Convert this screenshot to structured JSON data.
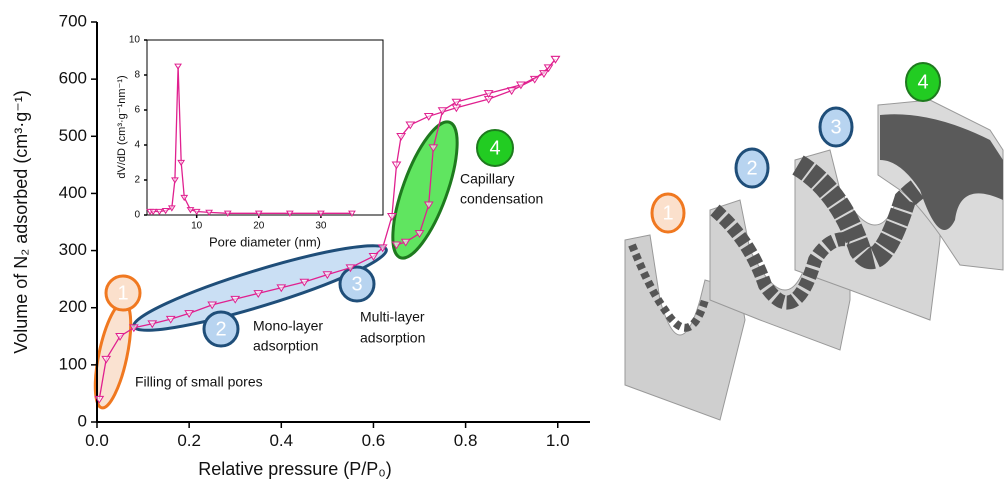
{
  "chart_data": {
    "type": "line",
    "x_label": "Relative pressure (P/P₀)",
    "y_label": "Volume of N₂ adsorbed (cm³·g⁻¹)",
    "xlim": [
      0,
      1.07
    ],
    "ylim": [
      0,
      700
    ],
    "xticks": [
      {
        "value": 0,
        "label": "0.0"
      },
      0.2,
      0.4,
      0.6,
      0.8,
      {
        "value": 1,
        "label": "1.0"
      }
    ],
    "yticks": [
      0,
      100,
      200,
      300,
      400,
      500,
      600,
      700
    ],
    "series": [
      {
        "color": "#e0208f",
        "x": [
          0.005,
          0.02,
          0.05,
          0.08,
          0.12,
          0.16,
          0.2,
          0.25,
          0.3,
          0.35,
          0.4,
          0.45,
          0.5,
          0.55,
          0.6,
          0.62,
          0.64,
          0.65,
          0.66,
          0.68,
          0.72,
          0.78,
          0.85,
          0.9,
          0.95,
          0.98,
          0.995
        ],
        "values": [
          40,
          110,
          150,
          165,
          172,
          180,
          190,
          205,
          215,
          225,
          235,
          245,
          258,
          270,
          290,
          305,
          360,
          450,
          500,
          520,
          535,
          550,
          565,
          580,
          600,
          620,
          635
        ]
      },
      {
        "color": "#e0208f",
        "x": [
          0.995,
          0.97,
          0.92,
          0.85,
          0.78,
          0.75,
          0.73,
          0.72,
          0.7,
          0.67,
          0.65
        ],
        "values": [
          635,
          610,
          590,
          575,
          560,
          545,
          480,
          380,
          330,
          315,
          310
        ]
      }
    ],
    "inset": {
      "type": "line",
      "x_label": "Pore diameter (nm)",
      "y_label": "dV/dD (cm³·g⁻¹nm⁻¹)",
      "xlim": [
        2,
        40
      ],
      "ylim": [
        0,
        10
      ],
      "xticks": [
        10,
        20,
        30
      ],
      "yticks": [
        0,
        2,
        4,
        6,
        8,
        10
      ],
      "color": "#e0208f",
      "x": [
        2.5,
        3,
        4,
        5,
        6,
        6.5,
        7,
        7.5,
        8,
        9,
        10,
        12,
        15,
        20,
        25,
        30,
        35
      ],
      "values": [
        0.2,
        0.2,
        0.2,
        0.25,
        0.4,
        2,
        8.5,
        3,
        1,
        0.3,
        0.2,
        0.15,
        0.1,
        0.1,
        0.1,
        0.1,
        0.1
      ]
    },
    "annotations": {
      "markers": [
        "1",
        "2",
        "3",
        "4"
      ],
      "filling": "Filling of small pores",
      "mono": [
        "Mono-layer",
        "adsorption"
      ],
      "multi": [
        "Multi-layer",
        "adsorption"
      ],
      "capillary": [
        "Capillary",
        "condensation"
      ]
    }
  },
  "illustration": {
    "labels": [
      "1",
      "2",
      "3",
      "4"
    ]
  }
}
